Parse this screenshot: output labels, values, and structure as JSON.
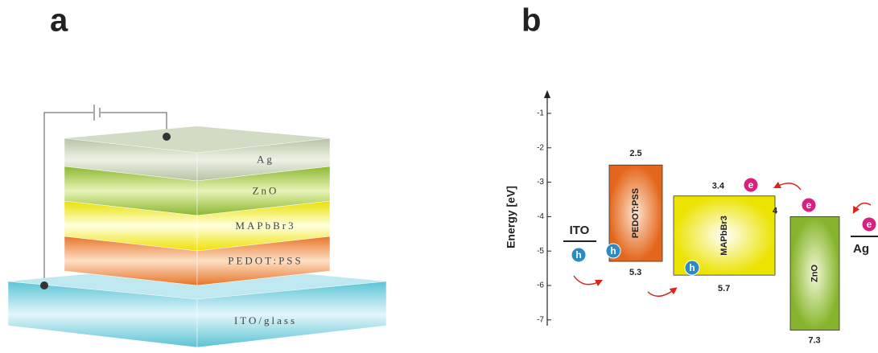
{
  "panel_a": {
    "label": "a",
    "layers": [
      "Ag",
      "ZnO",
      "MAPbBr3",
      "PEDOT:PSS",
      "ITO/glass"
    ]
  },
  "panel_b": {
    "label": "b",
    "y_label": "Energy [eV]",
    "yticks": [
      -1,
      -2,
      -3,
      -4,
      -5,
      -6,
      -7
    ],
    "bands": [
      {
        "name": "PEDOT:PSS",
        "top": 2.5,
        "bottom": 5.3
      },
      {
        "name": "MAPbBr3",
        "top": 3.4,
        "bottom": 5.7
      },
      {
        "name": "ZnO",
        "top": 4,
        "bottom": 7.3
      }
    ],
    "electrodes": [
      "ITO",
      "Ag"
    ],
    "hole": "h",
    "electron": "e"
  }
}
